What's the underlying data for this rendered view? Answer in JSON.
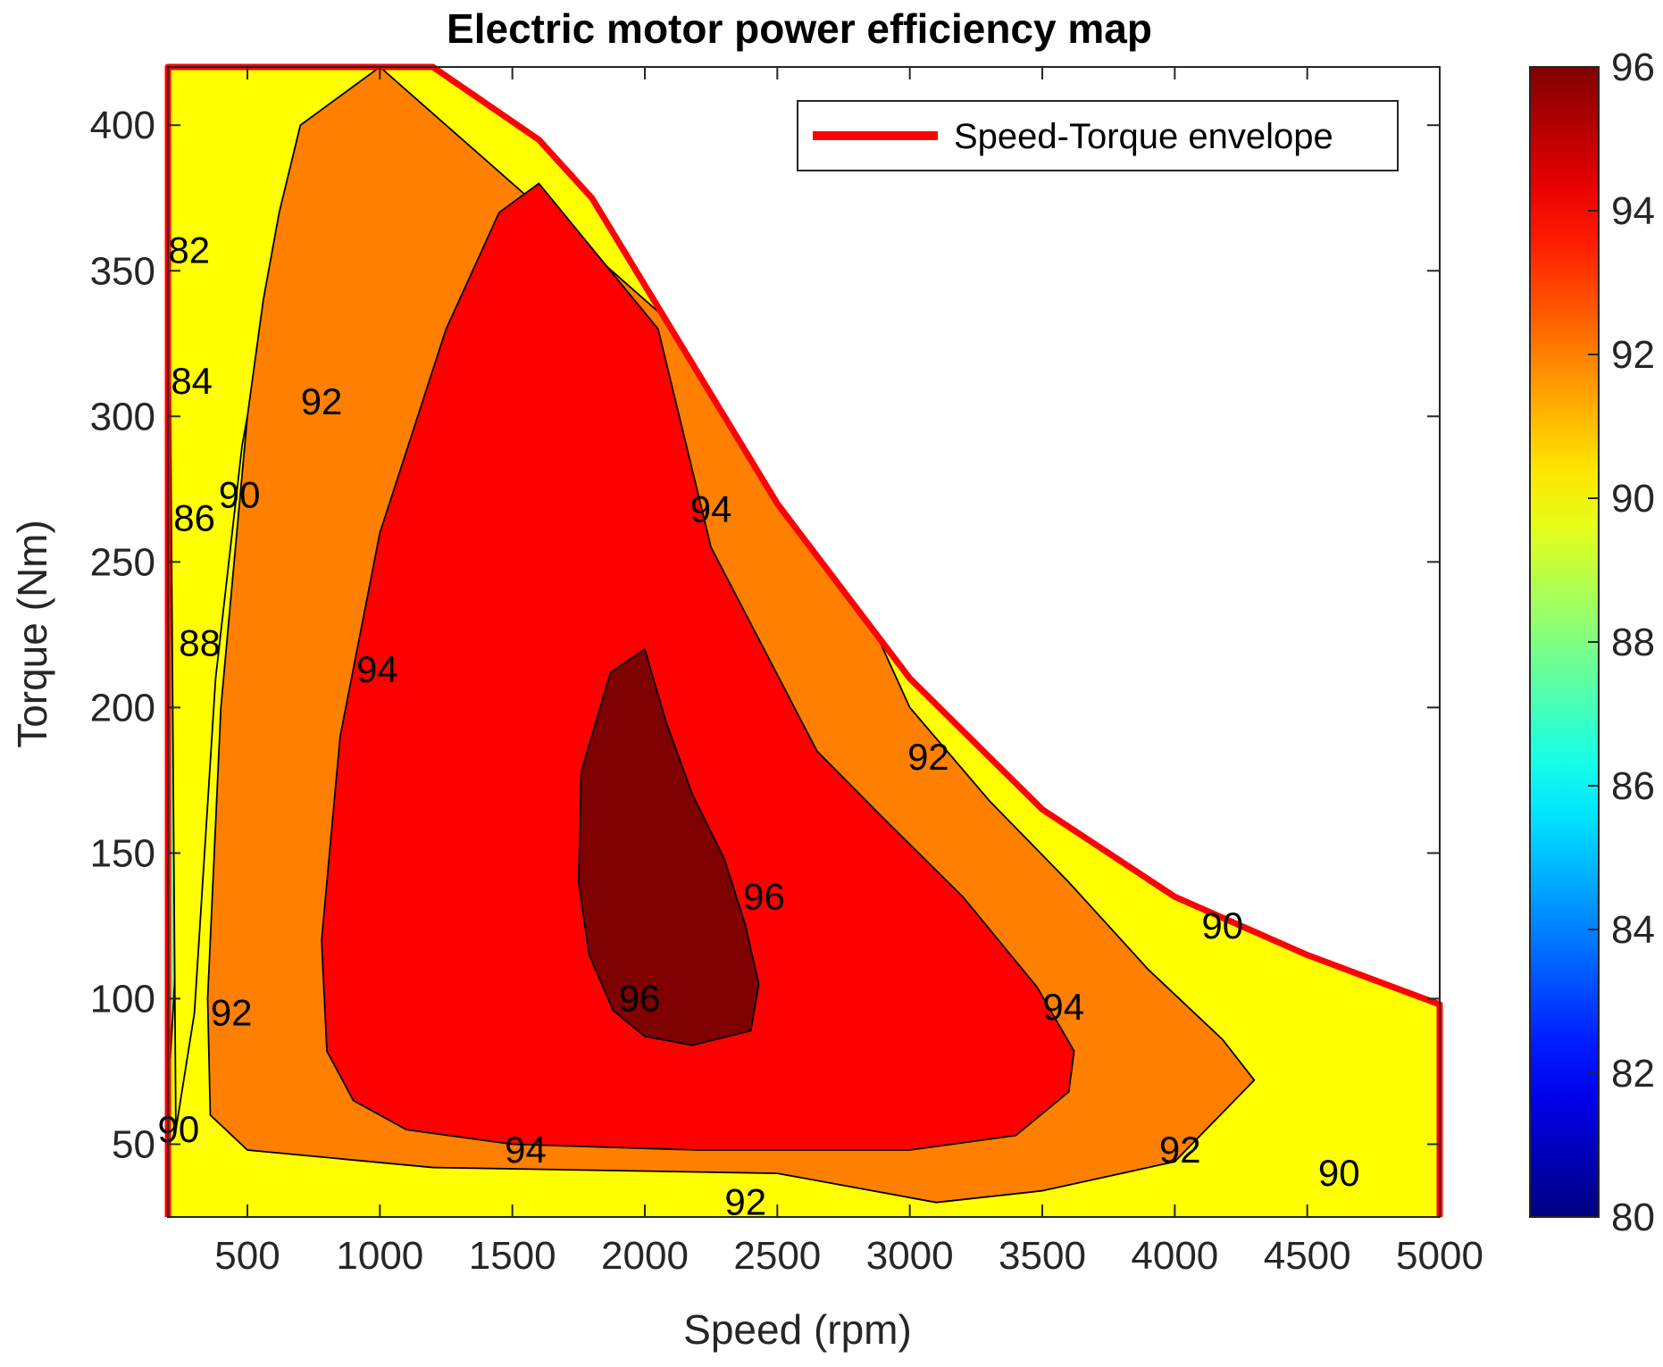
{
  "chart_data": {
    "type": "contour",
    "title": "Electric motor power efficiency map",
    "xlabel": "Speed (rpm)",
    "ylabel": "Torque (Nm)",
    "xlim": [
      200,
      5000
    ],
    "ylim": [
      25,
      420
    ],
    "xticks": [
      500,
      1000,
      1500,
      2000,
      2500,
      3000,
      3500,
      4000,
      4500,
      5000
    ],
    "yticks": [
      50,
      100,
      150,
      200,
      250,
      300,
      350,
      400
    ],
    "colorbar": {
      "range": [
        80,
        96
      ],
      "ticks": [
        80,
        82,
        84,
        86,
        88,
        90,
        92,
        94,
        96
      ]
    },
    "legend": {
      "entries": [
        "Speed-Torque envelope"
      ],
      "placement": "top-right"
    },
    "envelope": {
      "name": "Speed-Torque envelope",
      "color": "#ff0000",
      "x": [
        200,
        1200,
        1600,
        1800,
        2500,
        3000,
        3500,
        4000,
        4500,
        5000
      ],
      "y": [
        420,
        420,
        395,
        375,
        270,
        210,
        165,
        135,
        115,
        98
      ]
    },
    "levels": [
      {
        "level": 82,
        "color": "#0000d4",
        "region": {
          "x": [
            200,
            200,
            240,
            260,
            290,
            310,
            270
          ],
          "y": [
            420,
            280,
            300,
            330,
            380,
            420,
            420
          ]
        }
      },
      {
        "level": 84,
        "color": "#0073ff",
        "region": {
          "x": [
            200,
            200,
            260,
            300,
            330,
            350,
            310
          ],
          "y": [
            420,
            250,
            285,
            330,
            390,
            420,
            420
          ]
        }
      },
      {
        "level": 86,
        "color": "#00ffff",
        "region": {
          "x": [
            200,
            200,
            230,
            270,
            320,
            380,
            420,
            350
          ],
          "y": [
            420,
            160,
            240,
            290,
            340,
            400,
            420,
            420
          ]
        }
      },
      {
        "level": 88,
        "color": "#7fff7f",
        "region": {
          "x": [
            200,
            200,
            260,
            300,
            340,
            390,
            460,
            540,
            600
          ],
          "y": [
            420,
            65,
            160,
            240,
            290,
            330,
            370,
            405,
            420
          ]
        }
      },
      {
        "level": 90,
        "color": "#ffff00",
        "region": {
          "x": [
            200,
            230,
            300,
            380,
            480,
            600,
            750,
            1000
          ],
          "y": [
            420,
            55,
            95,
            210,
            290,
            350,
            390,
            420
          ]
        }
      },
      {
        "level": 92,
        "color": "#ff8000",
        "region": {
          "x": [
            1000,
            700,
            620,
            560,
            500,
            400,
            350,
            360,
            500,
            1200,
            2500,
            3100,
            3500,
            4000,
            4300,
            4180,
            3900,
            3600,
            3300,
            3000,
            2800,
            2500
          ],
          "y": [
            420,
            400,
            370,
            340,
            300,
            200,
            100,
            60,
            48,
            42,
            40,
            30,
            34,
            44,
            72,
            86,
            110,
            140,
            168,
            200,
            240,
            300
          ]
        }
      },
      {
        "level": 94,
        "color": "#ff0000",
        "region": {
          "x": [
            1600,
            1450,
            1250,
            1000,
            850,
            780,
            800,
            900,
            1100,
            1500,
            2200,
            3000,
            3400,
            3600,
            3620,
            3480,
            3200,
            2900,
            2650,
            2450,
            2250,
            2050
          ],
          "y": [
            380,
            370,
            330,
            260,
            190,
            120,
            82,
            65,
            55,
            50,
            48,
            48,
            53,
            68,
            82,
            104,
            135,
            162,
            185,
            220,
            255,
            330
          ]
        }
      },
      {
        "level": 96,
        "color": "#7f0000",
        "region": {
          "x": [
            2000,
            1870,
            1760,
            1750,
            1790,
            1880,
            2000,
            2180,
            2400,
            2430,
            2380,
            2300,
            2180,
            2080
          ],
          "y": [
            220,
            212,
            178,
            140,
            115,
            96,
            87,
            84,
            89,
            105,
            125,
            148,
            170,
            195
          ]
        }
      }
    ],
    "contour_labels": [
      {
        "text": "82",
        "x": 280,
        "y": 357
      },
      {
        "text": "84",
        "x": 290,
        "y": 312
      },
      {
        "text": "86",
        "x": 300,
        "y": 265
      },
      {
        "text": "88",
        "x": 320,
        "y": 222
      },
      {
        "text": "90",
        "x": 470,
        "y": 273
      },
      {
        "text": "92",
        "x": 780,
        "y": 305
      },
      {
        "text": "94",
        "x": 990,
        "y": 213
      },
      {
        "text": "94",
        "x": 2250,
        "y": 268
      },
      {
        "text": "96",
        "x": 2450,
        "y": 135
      },
      {
        "text": "96",
        "x": 1980,
        "y": 100
      },
      {
        "text": "94",
        "x": 3580,
        "y": 97
      },
      {
        "text": "92",
        "x": 3070,
        "y": 183
      },
      {
        "text": "90",
        "x": 4180,
        "y": 125
      },
      {
        "text": "92",
        "x": 440,
        "y": 95
      },
      {
        "text": "90",
        "x": 240,
        "y": 55
      },
      {
        "text": "94",
        "x": 1550,
        "y": 48
      },
      {
        "text": "92",
        "x": 2380,
        "y": 30
      },
      {
        "text": "92",
        "x": 4020,
        "y": 48
      },
      {
        "text": "90",
        "x": 4620,
        "y": 40
      }
    ]
  }
}
